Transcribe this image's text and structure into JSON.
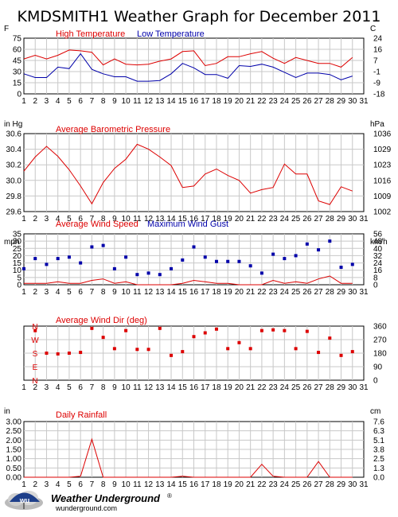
{
  "title": "KMDSMITH1 Weather Graph for December 2011",
  "colors": {
    "red": "#dd0000",
    "blue": "#0000aa",
    "axis": "#000000",
    "grid": "#c8c8c8",
    "text": "#000000"
  },
  "footer": {
    "brand": "Weather Underground",
    "registered": "®",
    "url": "wunderground.com",
    "logo_icon": "umbrella-cloud-logo-icon"
  },
  "chart_data": [
    {
      "type": "line",
      "title": "",
      "series_labels_shown": [
        "High Temperature",
        "Low Temperature"
      ],
      "left_unit": "F",
      "right_unit": "C",
      "x": [
        1,
        2,
        3,
        4,
        5,
        6,
        7,
        8,
        9,
        10,
        11,
        12,
        13,
        14,
        15,
        16,
        17,
        18,
        19,
        20,
        21,
        22,
        23,
        24,
        25,
        26,
        27,
        28,
        29,
        30
      ],
      "x_ticks": [
        1,
        2,
        3,
        4,
        5,
        6,
        7,
        8,
        9,
        10,
        11,
        12,
        13,
        14,
        15,
        16,
        17,
        18,
        19,
        20,
        21,
        22,
        23,
        24,
        25,
        26,
        27,
        28,
        29,
        30,
        31
      ],
      "ylim": [
        0,
        75
      ],
      "left_ticks": [
        "0",
        "15",
        "30",
        "45",
        "60",
        "75"
      ],
      "right_ticks": [
        "-18",
        "-9",
        "-1",
        "7",
        "16",
        "24"
      ],
      "series": [
        {
          "name": "High Temperature",
          "color_key": "red",
          "mark": "line",
          "values": [
            47,
            52,
            47,
            52,
            59,
            58,
            56,
            39,
            47,
            40,
            39,
            40,
            44,
            47,
            57,
            58,
            38,
            41,
            50,
            50,
            54,
            57,
            48,
            41,
            49,
            45,
            41,
            41,
            36,
            49
          ]
        },
        {
          "name": "Low Temperature",
          "color_key": "blue",
          "mark": "line",
          "values": [
            27,
            22,
            22,
            36,
            34,
            54,
            33,
            27,
            23,
            23,
            17,
            17,
            18,
            27,
            41,
            35,
            26,
            26,
            21,
            38,
            37,
            40,
            36,
            29,
            22,
            28,
            28,
            26,
            19,
            24
          ]
        }
      ]
    },
    {
      "type": "line",
      "series_labels_shown": [
        "Average Barometric Pressure"
      ],
      "left_unit": "in Hg",
      "right_unit": "hPa",
      "x": [
        1,
        2,
        3,
        4,
        5,
        6,
        7,
        8,
        9,
        10,
        11,
        12,
        13,
        14,
        15,
        16,
        17,
        18,
        19,
        20,
        21,
        22,
        23,
        24,
        25,
        26,
        27,
        28,
        29,
        30
      ],
      "x_ticks": [
        1,
        2,
        3,
        4,
        5,
        6,
        7,
        8,
        9,
        10,
        11,
        12,
        13,
        14,
        15,
        16,
        17,
        18,
        19,
        20,
        21,
        22,
        23,
        24,
        25,
        26,
        27,
        28,
        29,
        30,
        31
      ],
      "ylim": [
        29.6,
        30.7
      ],
      "left_ticks": [
        "29.6",
        "29.8",
        "30.0",
        "30.2",
        "30.4",
        "30.6"
      ],
      "right_ticks": [
        "1002",
        "1009",
        "1016",
        "1023",
        "1029",
        "1036"
      ],
      "series": [
        {
          "name": "Average Barometric Pressure",
          "color_key": "red",
          "mark": "line",
          "values": [
            30.17,
            30.37,
            30.52,
            30.38,
            30.19,
            29.96,
            29.71,
            30.01,
            30.21,
            30.34,
            30.55,
            30.48,
            30.37,
            30.25,
            29.94,
            29.96,
            30.13,
            30.2,
            30.11,
            30.04,
            29.86,
            29.91,
            29.94,
            30.27,
            30.13,
            30.13,
            29.75,
            29.7,
            29.95,
            29.89
          ]
        }
      ]
    },
    {
      "type": "scatter",
      "series_labels_shown": [
        "Average Wind Speed",
        "Maximum Wind Gust"
      ],
      "left_unit": "mph",
      "right_unit": "km/h",
      "x": [
        1,
        2,
        3,
        4,
        5,
        6,
        7,
        8,
        9,
        10,
        11,
        12,
        13,
        14,
        15,
        16,
        17,
        18,
        19,
        20,
        21,
        22,
        23,
        24,
        25,
        26,
        27,
        28,
        29,
        30
      ],
      "x_ticks": [
        1,
        2,
        3,
        4,
        5,
        6,
        7,
        8,
        9,
        10,
        11,
        12,
        13,
        14,
        15,
        16,
        17,
        18,
        19,
        20,
        21,
        22,
        23,
        24,
        25,
        26,
        27,
        28,
        29,
        30,
        31
      ],
      "ylim": [
        0,
        35
      ],
      "left_ticks": [
        "0",
        "5",
        "10",
        "15",
        "20",
        "25",
        "30",
        "35"
      ],
      "right_ticks": [
        "0",
        "8",
        "16",
        "24",
        "32",
        "40",
        "48",
        "56"
      ],
      "series": [
        {
          "name": "Average Wind Speed",
          "color_key": "red",
          "mark": "line",
          "values": [
            1,
            1,
            1,
            2,
            1,
            1,
            3,
            4,
            1,
            2,
            0,
            0,
            0,
            0,
            1,
            3,
            2,
            1,
            1,
            0,
            0,
            0,
            3,
            1,
            2,
            1,
            4,
            6,
            1,
            1
          ]
        },
        {
          "name": "Maximum Wind Gust",
          "color_key": "blue",
          "mark": "square",
          "values": [
            11,
            18,
            14,
            18,
            19,
            15,
            26,
            27,
            11,
            19,
            7,
            8,
            7,
            11,
            17,
            26,
            19,
            16,
            16,
            16,
            13,
            8,
            21,
            18,
            20,
            28,
            24,
            30,
            12,
            14
          ]
        }
      ]
    },
    {
      "type": "scatter",
      "series_labels_shown": [
        "Average Wind Dir (deg)"
      ],
      "left_unit": "",
      "right_unit": "",
      "compass_labels": [
        "N",
        "W",
        "S",
        "E",
        "N"
      ],
      "x": [
        1,
        2,
        3,
        4,
        5,
        6,
        7,
        8,
        9,
        10,
        11,
        12,
        13,
        14,
        15,
        16,
        17,
        18,
        19,
        20,
        21,
        22,
        23,
        24,
        25,
        26,
        27,
        28,
        29,
        30
      ],
      "x_ticks": [
        1,
        2,
        3,
        4,
        5,
        6,
        7,
        8,
        9,
        10,
        11,
        12,
        13,
        14,
        15,
        16,
        17,
        18,
        19,
        20,
        21,
        22,
        23,
        24,
        25,
        26,
        27,
        28,
        29,
        30,
        31
      ],
      "ylim": [
        0,
        360
      ],
      "left_ticks": [],
      "right_ticks": [
        "0",
        "90",
        "180",
        "270",
        "360"
      ],
      "series": [
        {
          "name": "Average Wind Dir (deg)",
          "color_key": "red",
          "mark": "square",
          "values": [
            null,
            330,
            180,
            175,
            180,
            185,
            345,
            285,
            210,
            330,
            205,
            205,
            345,
            165,
            190,
            290,
            315,
            340,
            210,
            250,
            210,
            330,
            335,
            330,
            210,
            325,
            185,
            280,
            165,
            190
          ]
        }
      ]
    },
    {
      "type": "line",
      "series_labels_shown": [
        "Daily Rainfall"
      ],
      "left_unit": "in",
      "right_unit": "cm",
      "x": [
        1,
        2,
        3,
        4,
        5,
        6,
        7,
        8,
        9,
        10,
        11,
        12,
        13,
        14,
        15,
        16,
        17,
        18,
        19,
        20,
        21,
        22,
        23,
        24,
        25,
        26,
        27,
        28,
        29,
        30
      ],
      "x_ticks": [
        1,
        2,
        3,
        4,
        5,
        6,
        7,
        8,
        9,
        10,
        11,
        12,
        13,
        14,
        15,
        16,
        17,
        18,
        19,
        20,
        21,
        22,
        23,
        24,
        25,
        26,
        27,
        28,
        29,
        30,
        31
      ],
      "ylim": [
        0,
        3.0
      ],
      "left_ticks": [
        "0.00",
        "0.50",
        "1.00",
        "1.50",
        "2.00",
        "2.50",
        "3.00"
      ],
      "right_ticks": [
        "0.0",
        "1.3",
        "2.5",
        "3.8",
        "5.1",
        "6.3",
        "7.6"
      ],
      "series": [
        {
          "name": "Daily Rainfall",
          "color_key": "red",
          "mark": "line",
          "values": [
            0,
            0,
            0,
            0,
            0,
            0.05,
            2.05,
            0,
            0,
            0,
            0,
            0,
            0,
            0,
            0.05,
            0,
            0,
            0,
            0,
            0,
            0,
            0.7,
            0.05,
            0,
            0,
            0,
            0.85,
            0,
            0,
            0
          ]
        }
      ]
    }
  ]
}
